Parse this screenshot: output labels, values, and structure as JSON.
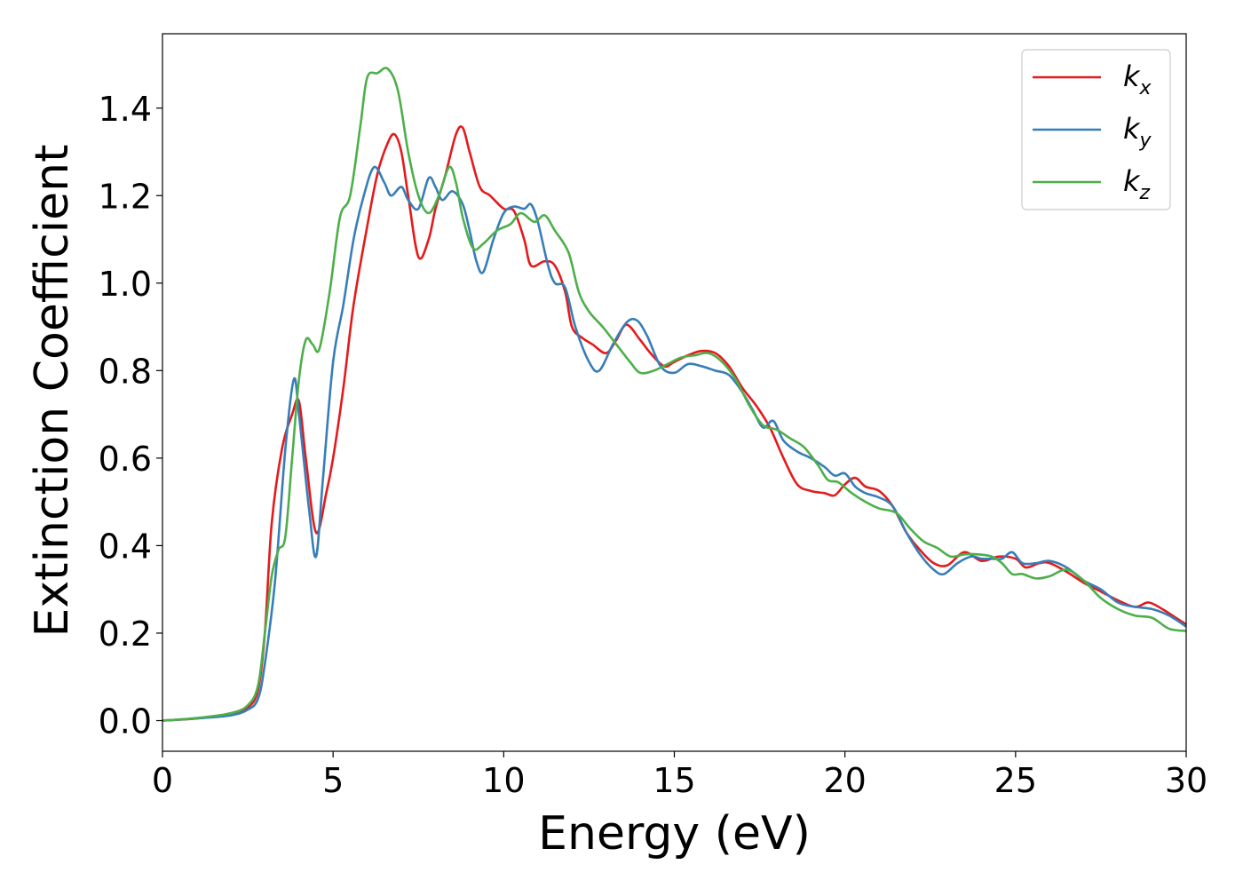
{
  "chart_data": {
    "type": "line",
    "xlabel": "Energy (eV)",
    "ylabel": "Extinction Coefficient",
    "xlim": [
      0,
      30
    ],
    "ylim": [
      -0.07,
      1.57
    ],
    "xticks": [
      0,
      5,
      10,
      15,
      20,
      25,
      30
    ],
    "xtick_labels": [
      "0",
      "5",
      "10",
      "15",
      "20",
      "25",
      "30"
    ],
    "yticks": [
      0.0,
      0.2,
      0.4,
      0.6,
      0.8,
      1.0,
      1.2,
      1.4
    ],
    "ytick_labels": [
      "0.0",
      "0.2",
      "0.4",
      "0.6",
      "0.8",
      "1.0",
      "1.2",
      "1.4"
    ],
    "grid": false,
    "legend_position": "top-right",
    "series": [
      {
        "name": "k",
        "subscript": "x",
        "color": "#e41a1c",
        "points": [
          [
            0,
            0.0
          ],
          [
            1,
            0.005
          ],
          [
            2,
            0.015
          ],
          [
            2.5,
            0.03
          ],
          [
            2.8,
            0.07
          ],
          [
            3.0,
            0.2
          ],
          [
            3.2,
            0.45
          ],
          [
            3.5,
            0.62
          ],
          [
            3.8,
            0.7
          ],
          [
            4.0,
            0.73
          ],
          [
            4.2,
            0.6
          ],
          [
            4.5,
            0.43
          ],
          [
            4.8,
            0.52
          ],
          [
            5.0,
            0.6
          ],
          [
            5.3,
            0.76
          ],
          [
            5.6,
            0.95
          ],
          [
            6.0,
            1.13
          ],
          [
            6.3,
            1.25
          ],
          [
            6.6,
            1.32
          ],
          [
            6.8,
            1.34
          ],
          [
            7.0,
            1.3
          ],
          [
            7.2,
            1.2
          ],
          [
            7.5,
            1.06
          ],
          [
            7.8,
            1.1
          ],
          [
            8.0,
            1.17
          ],
          [
            8.3,
            1.25
          ],
          [
            8.6,
            1.34
          ],
          [
            8.8,
            1.355
          ],
          [
            9.0,
            1.3
          ],
          [
            9.3,
            1.22
          ],
          [
            9.6,
            1.2
          ],
          [
            10.0,
            1.17
          ],
          [
            10.3,
            1.165
          ],
          [
            10.6,
            1.1
          ],
          [
            10.8,
            1.04
          ],
          [
            11.2,
            1.05
          ],
          [
            11.5,
            1.04
          ],
          [
            11.8,
            0.98
          ],
          [
            12.0,
            0.9
          ],
          [
            12.3,
            0.875
          ],
          [
            12.6,
            0.86
          ],
          [
            13.0,
            0.84
          ],
          [
            13.3,
            0.87
          ],
          [
            13.6,
            0.905
          ],
          [
            14.0,
            0.87
          ],
          [
            14.3,
            0.84
          ],
          [
            14.7,
            0.81
          ],
          [
            15.0,
            0.82
          ],
          [
            15.4,
            0.835
          ],
          [
            15.8,
            0.845
          ],
          [
            16.2,
            0.84
          ],
          [
            16.6,
            0.81
          ],
          [
            17.0,
            0.76
          ],
          [
            17.4,
            0.72
          ],
          [
            17.8,
            0.67
          ],
          [
            18.2,
            0.6
          ],
          [
            18.6,
            0.54
          ],
          [
            19.0,
            0.525
          ],
          [
            19.4,
            0.52
          ],
          [
            19.7,
            0.515
          ],
          [
            20.0,
            0.54
          ],
          [
            20.3,
            0.555
          ],
          [
            20.6,
            0.535
          ],
          [
            21.0,
            0.525
          ],
          [
            21.4,
            0.49
          ],
          [
            21.8,
            0.43
          ],
          [
            22.2,
            0.39
          ],
          [
            22.6,
            0.36
          ],
          [
            23.0,
            0.355
          ],
          [
            23.5,
            0.385
          ],
          [
            24.0,
            0.365
          ],
          [
            24.5,
            0.375
          ],
          [
            25.0,
            0.37
          ],
          [
            25.3,
            0.35
          ],
          [
            25.7,
            0.36
          ],
          [
            26.0,
            0.36
          ],
          [
            26.5,
            0.34
          ],
          [
            27.0,
            0.315
          ],
          [
            27.5,
            0.295
          ],
          [
            28.0,
            0.275
          ],
          [
            28.5,
            0.26
          ],
          [
            28.9,
            0.27
          ],
          [
            29.3,
            0.255
          ],
          [
            29.7,
            0.235
          ],
          [
            30.0,
            0.22
          ]
        ]
      },
      {
        "name": "k",
        "subscript": "y",
        "color": "#377eb8",
        "points": [
          [
            0,
            0.0
          ],
          [
            1,
            0.005
          ],
          [
            2,
            0.012
          ],
          [
            2.5,
            0.025
          ],
          [
            2.8,
            0.05
          ],
          [
            3.0,
            0.13
          ],
          [
            3.3,
            0.32
          ],
          [
            3.6,
            0.62
          ],
          [
            3.85,
            0.78
          ],
          [
            4.0,
            0.7
          ],
          [
            4.3,
            0.48
          ],
          [
            4.5,
            0.375
          ],
          [
            4.7,
            0.55
          ],
          [
            5.0,
            0.82
          ],
          [
            5.3,
            0.95
          ],
          [
            5.6,
            1.1
          ],
          [
            5.9,
            1.2
          ],
          [
            6.2,
            1.265
          ],
          [
            6.5,
            1.23
          ],
          [
            6.7,
            1.2
          ],
          [
            7.0,
            1.22
          ],
          [
            7.2,
            1.19
          ],
          [
            7.5,
            1.17
          ],
          [
            7.8,
            1.24
          ],
          [
            8.0,
            1.22
          ],
          [
            8.2,
            1.19
          ],
          [
            8.5,
            1.21
          ],
          [
            8.8,
            1.18
          ],
          [
            9.0,
            1.12
          ],
          [
            9.2,
            1.05
          ],
          [
            9.4,
            1.025
          ],
          [
            9.7,
            1.1
          ],
          [
            10.0,
            1.16
          ],
          [
            10.3,
            1.175
          ],
          [
            10.6,
            1.17
          ],
          [
            10.8,
            1.18
          ],
          [
            11.0,
            1.14
          ],
          [
            11.3,
            1.04
          ],
          [
            11.5,
            1.0
          ],
          [
            11.8,
            0.99
          ],
          [
            12.1,
            0.9
          ],
          [
            12.5,
            0.82
          ],
          [
            12.8,
            0.8
          ],
          [
            13.2,
            0.86
          ],
          [
            13.6,
            0.91
          ],
          [
            13.9,
            0.915
          ],
          [
            14.2,
            0.88
          ],
          [
            14.6,
            0.81
          ],
          [
            15.0,
            0.795
          ],
          [
            15.4,
            0.815
          ],
          [
            15.8,
            0.81
          ],
          [
            16.2,
            0.8
          ],
          [
            16.6,
            0.79
          ],
          [
            17.0,
            0.75
          ],
          [
            17.3,
            0.71
          ],
          [
            17.6,
            0.67
          ],
          [
            17.9,
            0.685
          ],
          [
            18.2,
            0.64
          ],
          [
            18.6,
            0.615
          ],
          [
            19.0,
            0.6
          ],
          [
            19.4,
            0.58
          ],
          [
            19.7,
            0.56
          ],
          [
            20.0,
            0.565
          ],
          [
            20.3,
            0.535
          ],
          [
            20.6,
            0.52
          ],
          [
            21.0,
            0.51
          ],
          [
            21.4,
            0.49
          ],
          [
            21.8,
            0.43
          ],
          [
            22.2,
            0.38
          ],
          [
            22.6,
            0.345
          ],
          [
            22.9,
            0.335
          ],
          [
            23.3,
            0.36
          ],
          [
            23.7,
            0.375
          ],
          [
            24.0,
            0.37
          ],
          [
            24.3,
            0.37
          ],
          [
            24.6,
            0.37
          ],
          [
            24.9,
            0.385
          ],
          [
            25.2,
            0.36
          ],
          [
            25.6,
            0.36
          ],
          [
            26.0,
            0.365
          ],
          [
            26.5,
            0.35
          ],
          [
            27.0,
            0.32
          ],
          [
            27.5,
            0.3
          ],
          [
            28.0,
            0.27
          ],
          [
            28.5,
            0.26
          ],
          [
            29.0,
            0.255
          ],
          [
            29.5,
            0.24
          ],
          [
            30.0,
            0.215
          ]
        ]
      },
      {
        "name": "k",
        "subscript": "z",
        "color": "#4daf4a",
        "points": [
          [
            0,
            0.0
          ],
          [
            1,
            0.006
          ],
          [
            2,
            0.017
          ],
          [
            2.5,
            0.035
          ],
          [
            2.8,
            0.08
          ],
          [
            3.0,
            0.2
          ],
          [
            3.2,
            0.33
          ],
          [
            3.4,
            0.39
          ],
          [
            3.6,
            0.42
          ],
          [
            3.8,
            0.6
          ],
          [
            4.0,
            0.78
          ],
          [
            4.2,
            0.87
          ],
          [
            4.4,
            0.86
          ],
          [
            4.6,
            0.85
          ],
          [
            4.9,
            0.98
          ],
          [
            5.2,
            1.15
          ],
          [
            5.5,
            1.2
          ],
          [
            5.8,
            1.36
          ],
          [
            6.0,
            1.47
          ],
          [
            6.3,
            1.48
          ],
          [
            6.6,
            1.49
          ],
          [
            6.9,
            1.44
          ],
          [
            7.2,
            1.3
          ],
          [
            7.5,
            1.2
          ],
          [
            7.8,
            1.16
          ],
          [
            8.1,
            1.2
          ],
          [
            8.4,
            1.265
          ],
          [
            8.6,
            1.23
          ],
          [
            8.8,
            1.15
          ],
          [
            9.1,
            1.08
          ],
          [
            9.4,
            1.09
          ],
          [
            9.8,
            1.12
          ],
          [
            10.2,
            1.135
          ],
          [
            10.5,
            1.16
          ],
          [
            10.9,
            1.14
          ],
          [
            11.2,
            1.155
          ],
          [
            11.5,
            1.12
          ],
          [
            11.9,
            1.07
          ],
          [
            12.2,
            0.98
          ],
          [
            12.5,
            0.935
          ],
          [
            12.9,
            0.9
          ],
          [
            13.3,
            0.86
          ],
          [
            13.7,
            0.82
          ],
          [
            14.0,
            0.795
          ],
          [
            14.4,
            0.8
          ],
          [
            14.8,
            0.815
          ],
          [
            15.2,
            0.83
          ],
          [
            15.6,
            0.835
          ],
          [
            16.0,
            0.84
          ],
          [
            16.4,
            0.82
          ],
          [
            16.8,
            0.78
          ],
          [
            17.2,
            0.72
          ],
          [
            17.6,
            0.675
          ],
          [
            18.0,
            0.665
          ],
          [
            18.4,
            0.645
          ],
          [
            18.8,
            0.625
          ],
          [
            19.2,
            0.585
          ],
          [
            19.5,
            0.55
          ],
          [
            19.8,
            0.545
          ],
          [
            20.2,
            0.52
          ],
          [
            20.6,
            0.5
          ],
          [
            21.0,
            0.485
          ],
          [
            21.5,
            0.475
          ],
          [
            21.9,
            0.44
          ],
          [
            22.3,
            0.41
          ],
          [
            22.7,
            0.395
          ],
          [
            23.1,
            0.375
          ],
          [
            23.5,
            0.38
          ],
          [
            23.9,
            0.38
          ],
          [
            24.3,
            0.375
          ],
          [
            24.6,
            0.36
          ],
          [
            24.9,
            0.335
          ],
          [
            25.2,
            0.335
          ],
          [
            25.6,
            0.325
          ],
          [
            26.0,
            0.33
          ],
          [
            26.5,
            0.345
          ],
          [
            27.0,
            0.32
          ],
          [
            27.5,
            0.28
          ],
          [
            28.0,
            0.255
          ],
          [
            28.5,
            0.24
          ],
          [
            29.0,
            0.235
          ],
          [
            29.5,
            0.21
          ],
          [
            30.0,
            0.205
          ]
        ]
      }
    ]
  }
}
